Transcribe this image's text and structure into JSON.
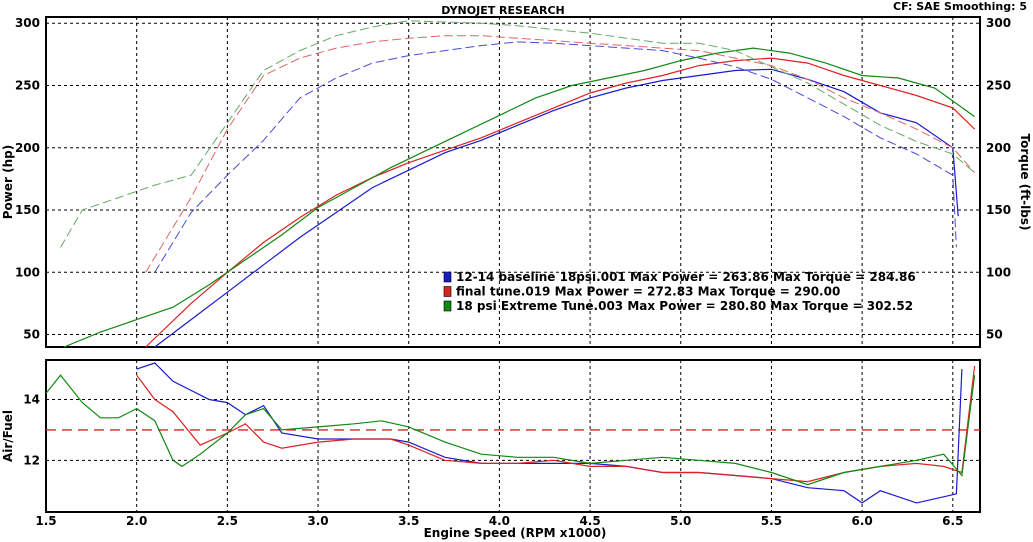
{
  "header": {
    "title": "DYNOJET RESEARCH",
    "info": "CF: SAE  Smoothing: 5"
  },
  "chart_data": [
    {
      "type": "line",
      "panel": "power-torque",
      "xlabel": "Engine Speed (RPM x1000)",
      "ylabel_left": "Power (hp)",
      "ylabel_right": "Torque (ft-lbs)",
      "xlim": [
        1.5,
        6.65
      ],
      "ylim_left": [
        40,
        305
      ],
      "ylim_right": [
        40,
        305
      ],
      "x_ticks": [
        "1.5",
        "2.0",
        "2.5",
        "3.0",
        "3.5",
        "4.0",
        "4.5",
        "5.0",
        "5.5",
        "6.0",
        "6.5"
      ],
      "y_ticks_left": [
        "50",
        "100",
        "150",
        "200",
        "250",
        "300"
      ],
      "y_ticks_right": [
        "50",
        "100",
        "150",
        "200",
        "250",
        "300"
      ],
      "grid": true,
      "legend_position": "center-right",
      "legend": [
        {
          "color": "#1a1acc",
          "text": "12-14 baseline 18psi.001 Max Power = 263.86     Max Torque = 284.86"
        },
        {
          "color": "#dd2222",
          "text": "final tune.019 Max Power = 272.83     Max Torque = 290.00"
        },
        {
          "color": "#118811",
          "text": "18 psi Extreme Tune.003 Max Power = 280.80     Max Torque = 302.52"
        }
      ],
      "series": [
        {
          "color": "#1a1acc",
          "style": "solid",
          "measure": "power",
          "x": [
            2.1,
            2.3,
            2.5,
            2.7,
            2.9,
            3.1,
            3.3,
            3.5,
            3.7,
            3.9,
            4.1,
            4.3,
            4.5,
            4.7,
            4.9,
            5.1,
            5.3,
            5.5,
            5.7,
            5.9,
            6.1,
            6.3,
            6.5,
            6.53
          ],
          "y": [
            40,
            62,
            84,
            106,
            128,
            148,
            168,
            182,
            196,
            206,
            218,
            230,
            240,
            248,
            254,
            258,
            262,
            263,
            255,
            245,
            228,
            220,
            200,
            145
          ]
        },
        {
          "color": "#dd2222",
          "style": "solid",
          "measure": "power",
          "x": [
            2.05,
            2.3,
            2.5,
            2.7,
            2.9,
            3.1,
            3.3,
            3.5,
            3.7,
            3.9,
            4.1,
            4.3,
            4.5,
            4.7,
            4.9,
            5.1,
            5.3,
            5.5,
            5.7,
            5.9,
            6.1,
            6.3,
            6.5,
            6.62
          ],
          "y": [
            40,
            75,
            100,
            124,
            144,
            162,
            176,
            188,
            198,
            208,
            220,
            232,
            244,
            252,
            258,
            266,
            270,
            272,
            268,
            258,
            250,
            242,
            232,
            215
          ]
        },
        {
          "color": "#118811",
          "style": "solid",
          "measure": "power",
          "x": [
            1.6,
            1.8,
            2.0,
            2.2,
            2.4,
            2.6,
            2.8,
            3.0,
            3.2,
            3.4,
            3.6,
            3.8,
            4.0,
            4.2,
            4.4,
            4.6,
            4.8,
            5.0,
            5.2,
            5.4,
            5.6,
            5.8,
            6.0,
            6.2,
            6.4,
            6.62
          ],
          "y": [
            40,
            52,
            62,
            72,
            90,
            110,
            130,
            152,
            168,
            184,
            198,
            212,
            226,
            240,
            250,
            256,
            262,
            270,
            276,
            280,
            276,
            268,
            258,
            256,
            248,
            225
          ]
        },
        {
          "color": "#4a4ad8",
          "style": "dashed",
          "measure": "torque",
          "x": [
            2.1,
            2.3,
            2.5,
            2.7,
            2.9,
            3.1,
            3.3,
            3.5,
            3.7,
            3.9,
            4.1,
            4.3,
            4.5,
            4.7,
            4.9,
            5.1,
            5.3,
            5.5,
            5.7,
            5.9,
            6.1,
            6.3,
            6.5,
            6.52
          ],
          "y": [
            100,
            148,
            178,
            206,
            240,
            256,
            268,
            274,
            278,
            282,
            285,
            284,
            282,
            280,
            278,
            272,
            265,
            255,
            240,
            225,
            208,
            195,
            178,
            120
          ]
        },
        {
          "color": "#e06666",
          "style": "dashed",
          "measure": "torque",
          "x": [
            2.05,
            2.3,
            2.5,
            2.7,
            2.9,
            3.1,
            3.3,
            3.5,
            3.7,
            3.9,
            4.1,
            4.3,
            4.5,
            4.7,
            4.9,
            5.1,
            5.3,
            5.5,
            5.7,
            5.9,
            6.1,
            6.3,
            6.5,
            6.62
          ],
          "y": [
            100,
            160,
            215,
            258,
            272,
            280,
            285,
            288,
            290,
            290,
            288,
            286,
            284,
            282,
            280,
            278,
            272,
            266,
            255,
            240,
            228,
            215,
            200,
            180
          ]
        },
        {
          "color": "#66aa66",
          "style": "dashed",
          "measure": "torque",
          "x": [
            1.58,
            1.7,
            1.9,
            2.1,
            2.3,
            2.5,
            2.7,
            2.9,
            3.1,
            3.3,
            3.5,
            3.7,
            3.9,
            4.1,
            4.3,
            4.5,
            4.7,
            4.9,
            5.1,
            5.3,
            5.5,
            5.7,
            5.9,
            6.1,
            6.3,
            6.5,
            6.62
          ],
          "y": [
            120,
            150,
            160,
            170,
            178,
            220,
            262,
            278,
            290,
            297,
            302,
            301,
            300,
            298,
            295,
            292,
            288,
            284,
            284,
            278,
            265,
            252,
            235,
            218,
            205,
            195,
            180
          ]
        }
      ]
    },
    {
      "type": "line",
      "panel": "air-fuel",
      "xlabel": "Engine Speed (RPM x1000)",
      "ylabel": "Air/Fuel",
      "xlim": [
        1.5,
        6.65
      ],
      "ylim": [
        10.3,
        15.3
      ],
      "y_ticks": [
        "12",
        "14"
      ],
      "grid": true,
      "reference_line": {
        "y": 13.0,
        "color": "#dd2222",
        "style": "dashed"
      },
      "series": [
        {
          "color": "#1a1acc",
          "style": "solid",
          "x": [
            2.0,
            2.1,
            2.2,
            2.4,
            2.5,
            2.6,
            2.7,
            2.8,
            3.0,
            3.2,
            3.4,
            3.5,
            3.7,
            3.9,
            4.1,
            4.3,
            4.5,
            4.7,
            4.9,
            5.1,
            5.3,
            5.5,
            5.7,
            5.9,
            6.0,
            6.1,
            6.3,
            6.45,
            6.52,
            6.55
          ],
          "y": [
            15.0,
            15.2,
            14.6,
            14.0,
            13.9,
            13.5,
            13.8,
            12.9,
            12.7,
            12.7,
            12.7,
            12.6,
            12.1,
            11.9,
            11.9,
            11.9,
            11.9,
            11.8,
            11.6,
            11.6,
            11.5,
            11.4,
            11.1,
            11.0,
            10.6,
            11.0,
            10.6,
            10.8,
            10.9,
            15.0
          ]
        },
        {
          "color": "#dd2222",
          "style": "solid",
          "x": [
            2.0,
            2.1,
            2.2,
            2.35,
            2.5,
            2.6,
            2.7,
            2.8,
            3.0,
            3.2,
            3.4,
            3.5,
            3.7,
            3.9,
            4.1,
            4.3,
            4.5,
            4.7,
            4.9,
            5.1,
            5.3,
            5.5,
            5.7,
            5.9,
            6.1,
            6.3,
            6.45,
            6.55,
            6.62
          ],
          "y": [
            14.8,
            14.0,
            13.6,
            12.5,
            12.9,
            13.2,
            12.6,
            12.4,
            12.6,
            12.7,
            12.7,
            12.5,
            12.0,
            11.9,
            11.9,
            12.0,
            11.8,
            11.8,
            11.6,
            11.6,
            11.5,
            11.4,
            11.3,
            11.6,
            11.8,
            11.9,
            11.8,
            11.6,
            15.1
          ]
        },
        {
          "color": "#118811",
          "style": "solid",
          "x": [
            1.5,
            1.58,
            1.7,
            1.8,
            1.9,
            2.0,
            2.1,
            2.2,
            2.25,
            2.35,
            2.5,
            2.6,
            2.7,
            2.8,
            3.0,
            3.2,
            3.35,
            3.5,
            3.7,
            3.9,
            4.1,
            4.3,
            4.5,
            4.7,
            4.9,
            5.1,
            5.3,
            5.5,
            5.7,
            5.9,
            6.1,
            6.3,
            6.45,
            6.55,
            6.62
          ],
          "y": [
            14.2,
            14.8,
            13.9,
            13.4,
            13.4,
            13.7,
            13.3,
            12.0,
            11.8,
            12.2,
            12.9,
            13.5,
            13.7,
            13.0,
            13.1,
            13.2,
            13.3,
            13.1,
            12.6,
            12.2,
            12.1,
            12.1,
            11.9,
            12.0,
            12.1,
            12.0,
            11.9,
            11.6,
            11.2,
            11.6,
            11.8,
            12.0,
            12.2,
            11.5,
            14.8
          ]
        }
      ]
    }
  ]
}
